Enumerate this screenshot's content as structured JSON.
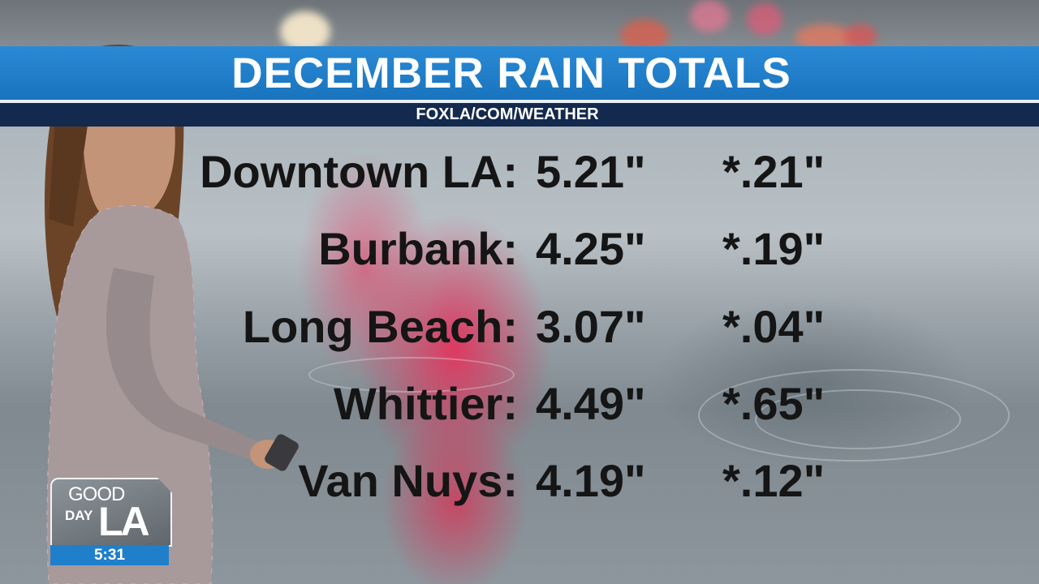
{
  "header": {
    "title": "DECEMBER RAIN TOTALS",
    "subtitle": "FOXLA/COM/WEATHER"
  },
  "rain_totals": [
    {
      "location": "Downtown LA:",
      "total": "5.21\"",
      "daily": "*.21\""
    },
    {
      "location": "Burbank:",
      "total": "4.25\"",
      "daily": "*.19\""
    },
    {
      "location": "Long Beach:",
      "total": "3.07\"",
      "daily": "*.04\""
    },
    {
      "location": "Whittier:",
      "total": "4.49\"",
      "daily": "*.65\""
    },
    {
      "location": "Van Nuys:",
      "total": "4.19\"",
      "daily": "*.12\""
    }
  ],
  "logo": {
    "line1": "GOOD",
    "line2": "DAY",
    "line3": "LA"
  },
  "clock": "5:31",
  "colors": {
    "banner_blue": "#1f7fcb",
    "subbar_navy": "#13294e",
    "text_dark": "#151515"
  }
}
